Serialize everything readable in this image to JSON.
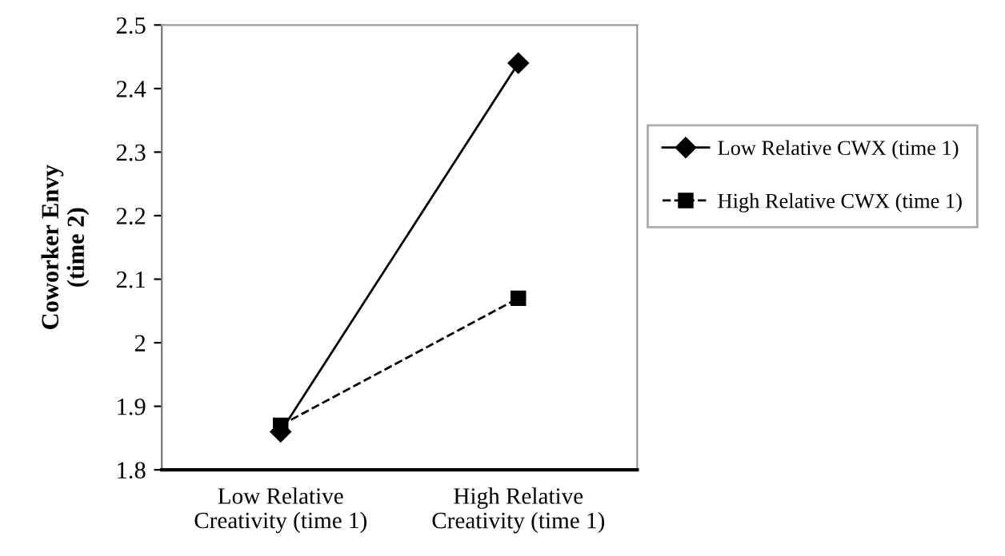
{
  "chart_data": {
    "type": "line",
    "ylabel": "Coworker Envy\n(time 2)",
    "categories": [
      "Low Relative\nCreativity (time 1)",
      "High Relative\nCreativity (time 1)"
    ],
    "series": [
      {
        "name": "Low Relative CWX (time 1)",
        "color": "#000000",
        "values": [
          1.86,
          2.44
        ],
        "marker": "diamond",
        "line_style": "solid"
      },
      {
        "name": "High Relative CWX (time 1)",
        "color": "#000000",
        "values": [
          1.87,
          2.07
        ],
        "marker": "square",
        "line_style": "dashed"
      }
    ],
    "ylim": [
      1.8,
      2.5
    ],
    "yticks": [
      1.8,
      1.9,
      2,
      2.1,
      2.2,
      2.3,
      2.4,
      2.5
    ],
    "grid": false,
    "legend": "right"
  }
}
